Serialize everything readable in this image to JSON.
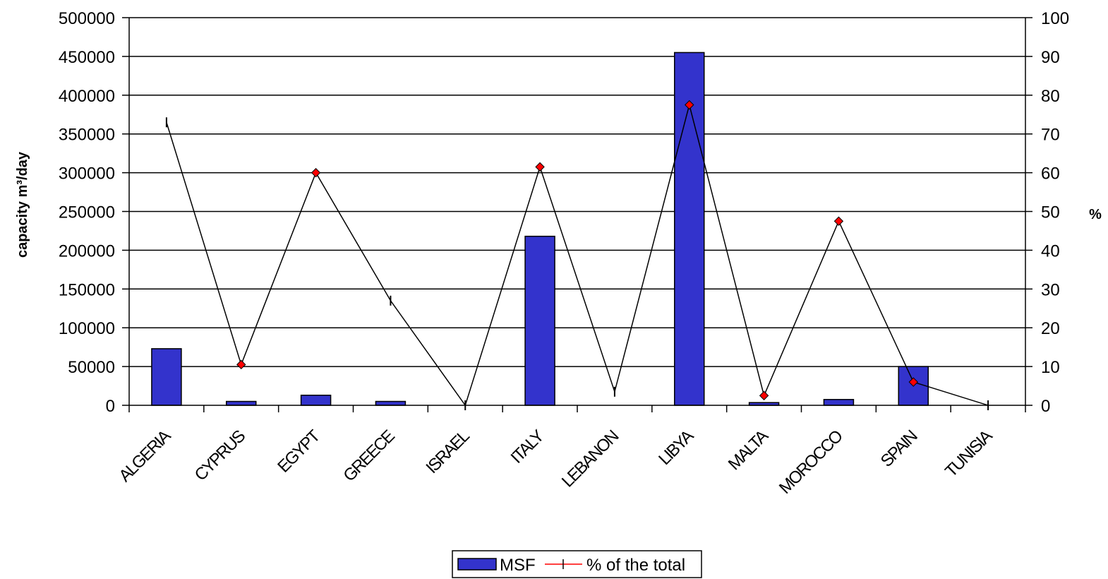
{
  "chart_data": {
    "type": "bar",
    "categories": [
      "ALGERIA",
      "CYPRUS",
      "EGYPT",
      "GREECE",
      "ISRAEL",
      "ITALY",
      "LEBANON",
      "LIBYA",
      "MALTA",
      "MOROCCO",
      "SPAIN",
      "TUNISIA"
    ],
    "series": [
      {
        "name": "MSF",
        "type": "bar",
        "axis": "left",
        "color": "#3333cc",
        "values": [
          73000,
          5000,
          13000,
          5000,
          0,
          218000,
          0,
          455000,
          3500,
          7500,
          50000,
          0
        ]
      },
      {
        "name": "% of the total",
        "type": "line",
        "axis": "right",
        "color": "#000000",
        "marker_color": "#ff0000",
        "values": [
          73,
          10.5,
          60,
          27,
          0,
          61.5,
          3.5,
          77.5,
          2.5,
          47.5,
          6,
          0
        ],
        "markers": [
          "tick",
          "diamond",
          "diamond",
          "tick",
          "tick",
          "diamond",
          "tick",
          "diamond",
          "diamond",
          "diamond",
          "diamond",
          "tick"
        ]
      }
    ],
    "ylabel": "capacity m³/day",
    "y2label": "%",
    "ylim": [
      0,
      500000
    ],
    "y2lim": [
      0,
      100
    ],
    "yticks": [
      "0",
      "50000",
      "100000",
      "150000",
      "200000",
      "250000",
      "300000",
      "350000",
      "400000",
      "450000",
      "500000"
    ],
    "y2ticks": [
      "0",
      "10",
      "20",
      "30",
      "40",
      "50",
      "60",
      "70",
      "80",
      "90",
      "100"
    ],
    "grid": true,
    "legend_position": "bottom-center"
  }
}
